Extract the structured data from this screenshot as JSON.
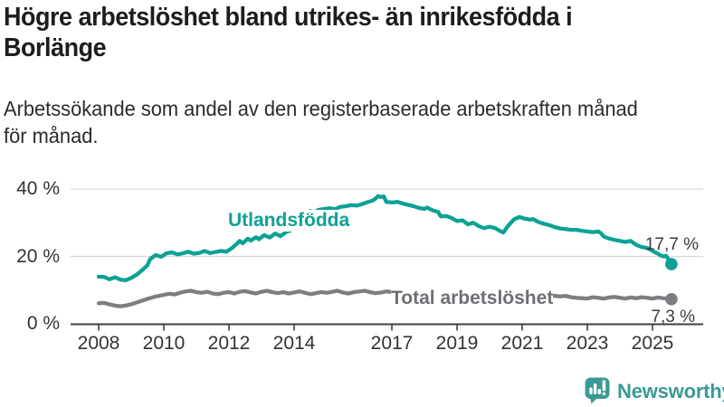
{
  "header": {
    "title_lines": [
      "Högre arbetslöshet bland utrikes- än inrikesfödda i",
      "Borlänge"
    ],
    "subtitle_lines": [
      "Arbetssökande som andel av den registerbaserade arbetskraften månad",
      "för månad."
    ]
  },
  "footer": {
    "brand": "Newsworthy",
    "brand_color": "#399a96"
  },
  "chart_data": {
    "type": "line",
    "title": "Högre arbetslöshet bland utrikes- än inrikesfödda i Borlänge",
    "subtitle": "Arbetssökande som andel av den registerbaserade arbetskraften månad för månad.",
    "unit": "%",
    "grid": "horizontal-only",
    "legend_position": "inline-labels",
    "x_range": [
      2008.0,
      2025.6
    ],
    "ylim": [
      0,
      42
    ],
    "y_ticks": [
      0,
      20,
      40
    ],
    "y_tick_labels": [
      "0 %",
      "20 %",
      "40 %"
    ],
    "x_tick_years": [
      2008,
      2010,
      2012,
      2014,
      2017,
      2019,
      2021,
      2023,
      2025
    ],
    "x_tick_labels": [
      "2008",
      "2010",
      "2012",
      "2014",
      "2017",
      "2019",
      "2021",
      "2023",
      "2025"
    ],
    "series": [
      {
        "name": "Utlandsfödda",
        "color": "#0ca295",
        "end_value": 17.7,
        "end_label": "17,7 %",
        "points": [
          [
            2008.0,
            14.0
          ],
          [
            2008.17,
            13.9
          ],
          [
            2008.33,
            13.2
          ],
          [
            2008.5,
            13.8
          ],
          [
            2008.67,
            13.1
          ],
          [
            2008.83,
            12.9
          ],
          [
            2009.0,
            13.6
          ],
          [
            2009.17,
            14.6
          ],
          [
            2009.33,
            15.9
          ],
          [
            2009.5,
            17.4
          ],
          [
            2009.58,
            19.2
          ],
          [
            2009.75,
            20.4
          ],
          [
            2009.92,
            19.9
          ],
          [
            2010.08,
            20.9
          ],
          [
            2010.25,
            21.2
          ],
          [
            2010.42,
            20.6
          ],
          [
            2010.58,
            20.9
          ],
          [
            2010.75,
            21.4
          ],
          [
            2010.92,
            20.8
          ],
          [
            2011.08,
            21.0
          ],
          [
            2011.25,
            21.6
          ],
          [
            2011.42,
            21.0
          ],
          [
            2011.58,
            21.3
          ],
          [
            2011.75,
            21.6
          ],
          [
            2011.92,
            21.4
          ],
          [
            2012.08,
            22.4
          ],
          [
            2012.25,
            23.8
          ],
          [
            2012.33,
            24.6
          ],
          [
            2012.42,
            23.9
          ],
          [
            2012.58,
            25.3
          ],
          [
            2012.67,
            24.7
          ],
          [
            2012.83,
            25.7
          ],
          [
            2012.92,
            25.1
          ],
          [
            2013.08,
            26.3
          ],
          [
            2013.25,
            25.6
          ],
          [
            2013.42,
            26.8
          ],
          [
            2013.58,
            26.0
          ],
          [
            2013.75,
            27.2
          ],
          [
            2013.92,
            27.9
          ],
          [
            2014.08,
            28.6
          ],
          [
            2014.25,
            30.3
          ],
          [
            2014.42,
            32.6
          ],
          [
            2014.5,
            33.5
          ],
          [
            2014.58,
            32.9
          ],
          [
            2014.75,
            33.8
          ],
          [
            2014.92,
            34.1
          ],
          [
            2015.08,
            34.3
          ],
          [
            2015.25,
            34.0
          ],
          [
            2015.42,
            34.7
          ],
          [
            2015.58,
            34.9
          ],
          [
            2015.75,
            35.2
          ],
          [
            2015.92,
            35.1
          ],
          [
            2016.08,
            35.5
          ],
          [
            2016.25,
            36.1
          ],
          [
            2016.42,
            36.6
          ],
          [
            2016.5,
            37.2
          ],
          [
            2016.58,
            37.9
          ],
          [
            2016.67,
            37.6
          ],
          [
            2016.75,
            37.8
          ],
          [
            2016.83,
            36.2
          ],
          [
            2017.0,
            36.0
          ],
          [
            2017.17,
            36.2
          ],
          [
            2017.33,
            35.7
          ],
          [
            2017.5,
            35.3
          ],
          [
            2017.67,
            34.9
          ],
          [
            2017.83,
            34.4
          ],
          [
            2018.0,
            34.1
          ],
          [
            2018.08,
            34.5
          ],
          [
            2018.25,
            33.7
          ],
          [
            2018.42,
            33.2
          ],
          [
            2018.5,
            31.9
          ],
          [
            2018.67,
            32.0
          ],
          [
            2018.83,
            31.4
          ],
          [
            2019.0,
            30.5
          ],
          [
            2019.17,
            30.7
          ],
          [
            2019.33,
            29.5
          ],
          [
            2019.5,
            30.0
          ],
          [
            2019.67,
            29.0
          ],
          [
            2019.83,
            28.4
          ],
          [
            2020.0,
            28.8
          ],
          [
            2020.17,
            28.4
          ],
          [
            2020.33,
            27.5
          ],
          [
            2020.42,
            27.1
          ],
          [
            2020.58,
            29.2
          ],
          [
            2020.75,
            31.0
          ],
          [
            2020.92,
            31.7
          ],
          [
            2021.08,
            31.2
          ],
          [
            2021.25,
            30.9
          ],
          [
            2021.33,
            31.1
          ],
          [
            2021.5,
            30.2
          ],
          [
            2021.67,
            29.7
          ],
          [
            2021.83,
            29.3
          ],
          [
            2022.0,
            28.7
          ],
          [
            2022.17,
            28.3
          ],
          [
            2022.33,
            28.1
          ],
          [
            2022.5,
            27.9
          ],
          [
            2022.67,
            27.9
          ],
          [
            2022.83,
            27.6
          ],
          [
            2023.0,
            27.4
          ],
          [
            2023.17,
            27.2
          ],
          [
            2023.33,
            27.4
          ],
          [
            2023.42,
            26.9
          ],
          [
            2023.5,
            25.9
          ],
          [
            2023.67,
            25.3
          ],
          [
            2023.83,
            24.9
          ],
          [
            2024.0,
            24.6
          ],
          [
            2024.17,
            24.3
          ],
          [
            2024.33,
            24.6
          ],
          [
            2024.5,
            23.4
          ],
          [
            2024.67,
            22.8
          ],
          [
            2024.83,
            22.5
          ],
          [
            2025.0,
            21.7
          ],
          [
            2025.08,
            21.2
          ],
          [
            2025.17,
            20.8
          ],
          [
            2025.25,
            20.3
          ],
          [
            2025.33,
            20.0
          ],
          [
            2025.42,
            20.2
          ],
          [
            2025.5,
            18.9
          ],
          [
            2025.58,
            17.7
          ]
        ]
      },
      {
        "name": "Total arbetslöshet",
        "color": "#7e7e82",
        "end_value": 7.3,
        "end_label": "7,3 %",
        "points": [
          [
            2008.0,
            6.1
          ],
          [
            2008.17,
            6.2
          ],
          [
            2008.33,
            5.8
          ],
          [
            2008.5,
            5.4
          ],
          [
            2008.67,
            5.2
          ],
          [
            2008.83,
            5.4
          ],
          [
            2009.0,
            5.8
          ],
          [
            2009.25,
            6.6
          ],
          [
            2009.5,
            7.4
          ],
          [
            2009.75,
            8.1
          ],
          [
            2010.0,
            8.6
          ],
          [
            2010.17,
            8.9
          ],
          [
            2010.33,
            8.7
          ],
          [
            2010.5,
            9.2
          ],
          [
            2010.67,
            9.6
          ],
          [
            2010.83,
            9.8
          ],
          [
            2011.0,
            9.4
          ],
          [
            2011.17,
            9.2
          ],
          [
            2011.33,
            9.5
          ],
          [
            2011.5,
            9.0
          ],
          [
            2011.67,
            8.8
          ],
          [
            2011.83,
            9.2
          ],
          [
            2012.0,
            9.4
          ],
          [
            2012.17,
            9.0
          ],
          [
            2012.33,
            9.5
          ],
          [
            2012.5,
            9.7
          ],
          [
            2012.67,
            9.3
          ],
          [
            2012.83,
            9.0
          ],
          [
            2013.0,
            9.5
          ],
          [
            2013.17,
            9.8
          ],
          [
            2013.33,
            9.4
          ],
          [
            2013.5,
            9.1
          ],
          [
            2013.67,
            9.4
          ],
          [
            2013.83,
            9.0
          ],
          [
            2014.0,
            9.3
          ],
          [
            2014.17,
            9.6
          ],
          [
            2014.33,
            9.2
          ],
          [
            2014.5,
            8.8
          ],
          [
            2014.67,
            9.1
          ],
          [
            2014.83,
            9.4
          ],
          [
            2015.0,
            9.2
          ],
          [
            2015.17,
            9.5
          ],
          [
            2015.33,
            9.8
          ],
          [
            2015.5,
            9.3
          ],
          [
            2015.67,
            9.0
          ],
          [
            2015.83,
            9.4
          ],
          [
            2016.0,
            9.6
          ],
          [
            2016.17,
            9.8
          ],
          [
            2016.33,
            9.4
          ],
          [
            2016.5,
            9.1
          ],
          [
            2016.67,
            9.3
          ],
          [
            2016.83,
            9.6
          ],
          [
            2017.0,
            9.4
          ],
          [
            2017.25,
            9.1
          ],
          [
            2017.5,
            9.0
          ],
          [
            2017.75,
            8.8
          ],
          [
            2018.0,
            8.7
          ],
          [
            2018.25,
            8.5
          ],
          [
            2018.5,
            8.4
          ],
          [
            2018.75,
            8.5
          ],
          [
            2019.0,
            8.5
          ],
          [
            2019.25,
            8.4
          ],
          [
            2019.5,
            8.3
          ],
          [
            2019.75,
            8.4
          ],
          [
            2020.0,
            8.6
          ],
          [
            2020.25,
            9.0
          ],
          [
            2020.5,
            9.2
          ],
          [
            2020.75,
            9.1
          ],
          [
            2021.0,
            9.0
          ],
          [
            2021.25,
            8.8
          ],
          [
            2021.5,
            8.6
          ],
          [
            2021.75,
            8.4
          ],
          [
            2022.0,
            8.3
          ],
          [
            2022.17,
            8.1
          ],
          [
            2022.33,
            8.3
          ],
          [
            2022.5,
            7.9
          ],
          [
            2022.67,
            7.7
          ],
          [
            2022.83,
            7.6
          ],
          [
            2023.0,
            7.5
          ],
          [
            2023.17,
            7.9
          ],
          [
            2023.33,
            7.7
          ],
          [
            2023.5,
            7.5
          ],
          [
            2023.67,
            7.8
          ],
          [
            2023.83,
            8.0
          ],
          [
            2024.0,
            7.7
          ],
          [
            2024.17,
            7.5
          ],
          [
            2024.33,
            7.8
          ],
          [
            2024.5,
            7.6
          ],
          [
            2024.67,
            7.9
          ],
          [
            2024.83,
            7.7
          ],
          [
            2025.0,
            7.5
          ],
          [
            2025.17,
            7.8
          ],
          [
            2025.33,
            7.6
          ],
          [
            2025.58,
            7.3
          ]
        ]
      }
    ]
  }
}
